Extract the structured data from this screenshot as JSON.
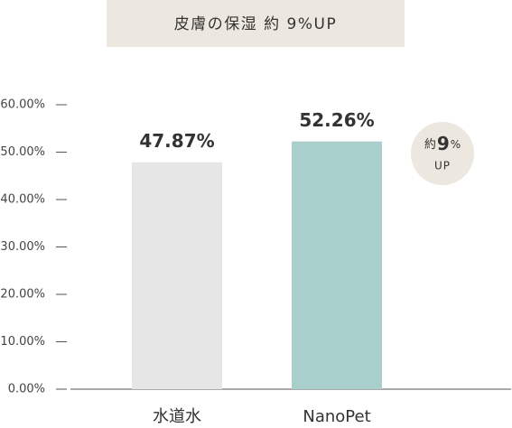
{
  "chart_data": {
    "type": "bar",
    "title": "皮膚の保湿 約 9%UP",
    "categories": [
      "水道水",
      "NanoPet"
    ],
    "values": [
      47.87,
      52.26
    ],
    "value_labels": [
      "47.87%",
      "52.26%"
    ],
    "colors": [
      "#e6e6e6",
      "#a8cfcb"
    ],
    "ylim": [
      0,
      60
    ],
    "yticks": [
      {
        "value": 0,
        "label": "0.00%"
      },
      {
        "value": 10,
        "label": "10.00%"
      },
      {
        "value": 20,
        "label": "20.00%"
      },
      {
        "value": 30,
        "label": "30.00%"
      },
      {
        "value": 40,
        "label": "40.00%"
      },
      {
        "value": 50,
        "label": "50.00%"
      },
      {
        "value": 60,
        "label": "60.00%"
      }
    ],
    "annotation": {
      "prefix": "約",
      "number": "9",
      "unit": "%",
      "line2": "UP"
    }
  }
}
